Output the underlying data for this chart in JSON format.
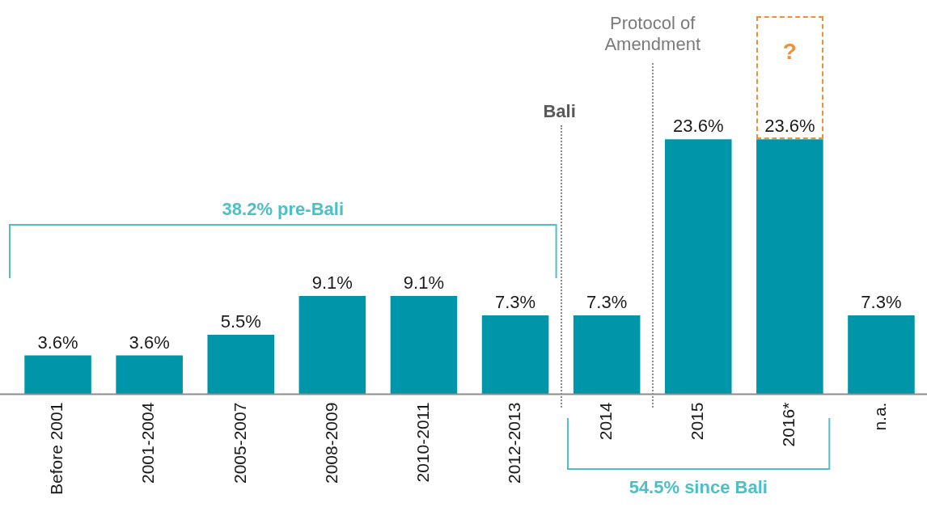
{
  "chart_data": {
    "type": "bar",
    "categories": [
      "Before 2001",
      "2001-2004",
      "2005-2007",
      "2008-2009",
      "2010-2011",
      "2012-2013",
      "2014",
      "2015",
      "2016*",
      "n.a."
    ],
    "values": [
      3.6,
      3.6,
      5.5,
      9.1,
      9.1,
      7.3,
      7.3,
      23.6,
      23.6,
      7.3
    ],
    "value_labels": [
      "3.6%",
      "3.6%",
      "5.5%",
      "9.1%",
      "9.1%",
      "7.3%",
      "7.3%",
      "23.6%",
      "23.6%",
      "7.3%"
    ],
    "color": "#0096a9",
    "tick_labels": "x",
    "grid": false,
    "legend": false,
    "annotations": [
      "38.2% pre-Bali",
      "54.5% since Bali",
      "Bali",
      "Protocol of Amendment",
      "?"
    ]
  }
}
